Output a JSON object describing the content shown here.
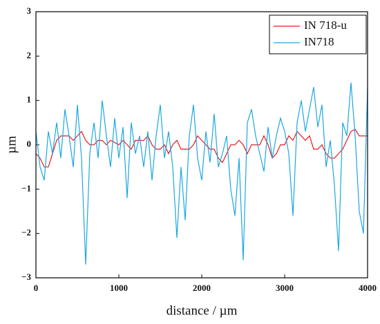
{
  "chart_data": {
    "type": "line",
    "xlabel": "distance / µm",
    "ylabel": "µm",
    "x": [
      0,
      50,
      100,
      150,
      200,
      250,
      300,
      350,
      400,
      450,
      500,
      550,
      600,
      650,
      700,
      750,
      800,
      850,
      900,
      950,
      1000,
      1050,
      1100,
      1150,
      1200,
      1250,
      1300,
      1350,
      1400,
      1450,
      1500,
      1550,
      1600,
      1650,
      1700,
      1750,
      1800,
      1850,
      1900,
      1950,
      2000,
      2050,
      2100,
      2150,
      2200,
      2250,
      2300,
      2350,
      2400,
      2450,
      2500,
      2550,
      2600,
      2650,
      2700,
      2750,
      2800,
      2850,
      2900,
      2950,
      3000,
      3050,
      3100,
      3150,
      3200,
      3250,
      3300,
      3350,
      3400,
      3450,
      3500,
      3550,
      3600,
      3650,
      3700,
      3750,
      3800,
      3850,
      3900,
      3950,
      4000
    ],
    "series": [
      {
        "name": "IN 718-u",
        "color": "#e8191f",
        "values": [
          -0.2,
          -0.3,
          -0.5,
          -0.5,
          -0.2,
          0.1,
          0.2,
          0.2,
          0.2,
          0.1,
          0.2,
          0.3,
          0.1,
          0,
          0,
          0.1,
          0.1,
          0,
          0.1,
          0.05,
          0,
          0.1,
          0,
          -0.1,
          0.1,
          0.1,
          0.1,
          0.2,
          0,
          -0.1,
          -0.1,
          0,
          -0.2,
          0,
          0.1,
          -0.1,
          -0.1,
          -0.1,
          0,
          0.2,
          0.1,
          0,
          -0.1,
          -0.1,
          -0.3,
          -0.4,
          -0.2,
          0,
          0,
          0.1,
          0,
          -0.2,
          0,
          0,
          0,
          0.2,
          0,
          -0.3,
          -0.2,
          0,
          0,
          0.2,
          0.1,
          0.3,
          0.2,
          0.1,
          0.2,
          -0.1,
          -0.1,
          0,
          -0.2,
          -0.3,
          -0.3,
          -0.2,
          -0.1,
          0.1,
          0.3,
          0.35,
          0.2,
          0.2,
          0.2
        ]
      },
      {
        "name": "IN718",
        "color": "#1aa7e0",
        "values": [
          0.3,
          -0.5,
          -0.8,
          0.3,
          -0.2,
          0.5,
          -0.3,
          0.8,
          0.2,
          -0.5,
          0.9,
          -0.3,
          -2.7,
          -0.2,
          0.5,
          -0.3,
          1.0,
          0.2,
          -0.5,
          0.6,
          -0.3,
          0.4,
          -1.2,
          0.5,
          -0.2,
          0.2,
          -0.5,
          0.3,
          -0.8,
          0.2,
          0.9,
          -0.3,
          0.3,
          -0.5,
          -2.1,
          -0.5,
          -1.7,
          0.2,
          0.9,
          -0.3,
          -0.8,
          0.3,
          -0.4,
          0.7,
          -0.5,
          -0.2,
          0.2,
          -1.0,
          -1.6,
          -0.3,
          -2.6,
          0.5,
          0.8,
          0.2,
          -0.2,
          -0.6,
          0.4,
          -0.3,
          0.2,
          0.6,
          0.3,
          -0.2,
          -1.6,
          0.5,
          1.0,
          0.3,
          0.8,
          1.3,
          0.4,
          0.9,
          -0.5,
          0.1,
          -0.9,
          -2.4,
          0.5,
          0.2,
          1.4,
          0.2,
          -1.5,
          -2.0,
          1.3
        ]
      }
    ],
    "xlim": [
      0,
      4000
    ],
    "xticks": [
      0,
      1000,
      2000,
      3000,
      4000
    ],
    "ylim": [
      -3,
      3
    ],
    "yticks": [
      {
        "value": -3,
        "label": "−3"
      },
      {
        "value": -2,
        "label": "−2"
      },
      {
        "value": -1,
        "label": "−1"
      },
      0,
      1,
      2,
      3
    ],
    "legend": "upper right"
  }
}
